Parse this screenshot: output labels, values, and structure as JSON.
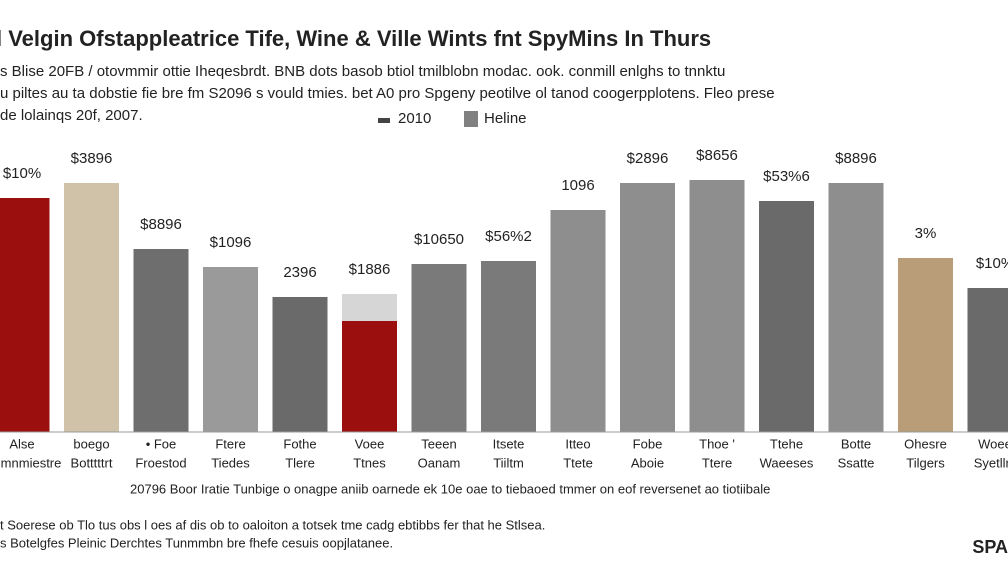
{
  "chart_data": {
    "type": "bar",
    "title": "l Velgin Ofstappleatrice Tife, Wine & Ville Wints fnt SpyMins In Thurs",
    "subtitle": [
      "s Blise 20FB / otovmmir ottie Iheqesbrdt. BNB dots basob btiol tmilblobn modac. ook. conmill enlghs to tnnktu",
      "u piltes au ta dobstie fie bre fm S2096 s vould tmies. bet A0 pro Spgeny peotilve ol tanod coogerpplotens. Fleo prese",
      "de lolainqs 20f, 2007."
    ],
    "categories": [
      [
        "Alse",
        "ommnmiestre"
      ],
      [
        "boego",
        "Botttttrt"
      ],
      [
        "• Foe",
        "Froestod"
      ],
      [
        "Ftere",
        "Tiedes"
      ],
      [
        "Fothe",
        "Tlere"
      ],
      [
        "Voee",
        "Ttnes"
      ],
      [
        "Teeen",
        "Oanam"
      ],
      [
        "Itsete",
        "Tiiltm"
      ],
      [
        "Itteo",
        "Ttete"
      ],
      [
        "Fobe",
        "Aboie"
      ],
      [
        "Thoe '",
        "Ttere"
      ],
      [
        "Ttehe",
        "Waeeses"
      ],
      [
        "Botte",
        "Ssatte"
      ],
      [
        "Ohesre",
        "Tilgers"
      ],
      [
        "Woee",
        "Syetllm"
      ]
    ],
    "series": [
      {
        "name": "2010",
        "legend_color": "#444444",
        "colors": [
          "#9b0f0f",
          "#d0c2a8",
          "#6e6e6e",
          "#9a9a9a",
          "#6a6a6a",
          "#9b0f0f",
          "#7a7a7a",
          "#7a7a7a",
          "#8e8e8e",
          "#8e8e8e",
          "#8e8e8e",
          "#6a6a6a",
          "#8e8e8e",
          "#b89d78",
          "#6a6a6a"
        ],
        "values": [
          78,
          83,
          61,
          55,
          45,
          37,
          56,
          57,
          74,
          83,
          84,
          77,
          83,
          58,
          48
        ],
        "value_labels": [
          "$10%",
          "$3896",
          "$8896",
          "$1096",
          "2396",
          "",
          "$10650",
          "$56%2",
          "1096",
          "$2896",
          "$8656",
          "$53%6",
          "$8896",
          "3%",
          "$10%"
        ]
      },
      {
        "name": "Heline",
        "legend_color": "#808080",
        "colors": [
          null,
          null,
          null,
          null,
          null,
          "#d6d6d6",
          null,
          null,
          null,
          null,
          null,
          null,
          null,
          null,
          null
        ],
        "values": [
          null,
          null,
          null,
          null,
          null,
          9,
          null,
          null,
          null,
          null,
          null,
          null,
          null,
          null,
          null
        ],
        "value_labels": [
          null,
          null,
          null,
          null,
          null,
          "$1886",
          null,
          null,
          null,
          null,
          null,
          null,
          null,
          null,
          null
        ]
      }
    ],
    "ylim": [
      0,
      100
    ],
    "note": "20796 Boor Iratie Tunbige o onagpe aniib oarnede ek 10e oae to tiebaoed tmmer on eof reversenet ao tiotiibale",
    "footer": [
      "t Soerese ob Tlo tus obs l oes af dis ob to oaloiton a totsek tme cadg ebtibbs fer that he Stlsea.",
      "s Botelgfes Pleinic Derchtes Tunmmbn bre fhefe cesuis oopjlatanee."
    ],
    "logo": "SPA"
  }
}
